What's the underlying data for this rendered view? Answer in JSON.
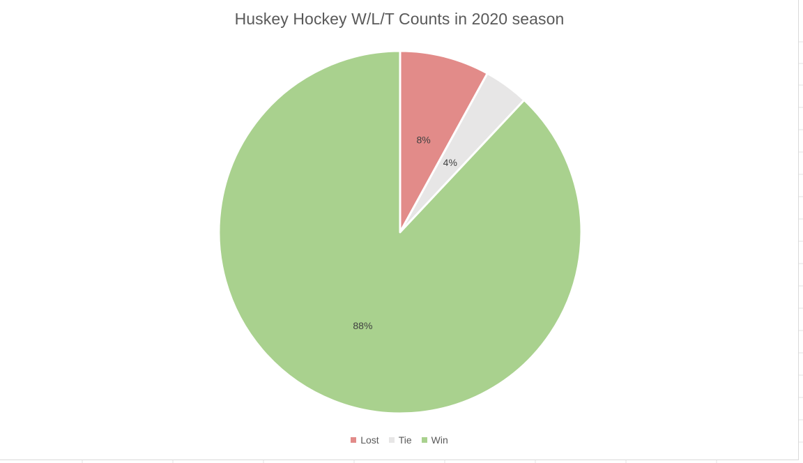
{
  "chart_data": {
    "type": "pie",
    "title": "Huskey Hockey W/L/T Counts in 2020 season",
    "categories": [
      "Lost",
      "Tie",
      "Win"
    ],
    "values": [
      8,
      4,
      88
    ],
    "data_labels": [
      "8%",
      "4%",
      "88%"
    ],
    "colors": [
      "#e28b89",
      "#e7e6e6",
      "#a9d18e"
    ],
    "start_angle_deg": 0,
    "direction": "clockwise",
    "legend_position": "bottom"
  }
}
